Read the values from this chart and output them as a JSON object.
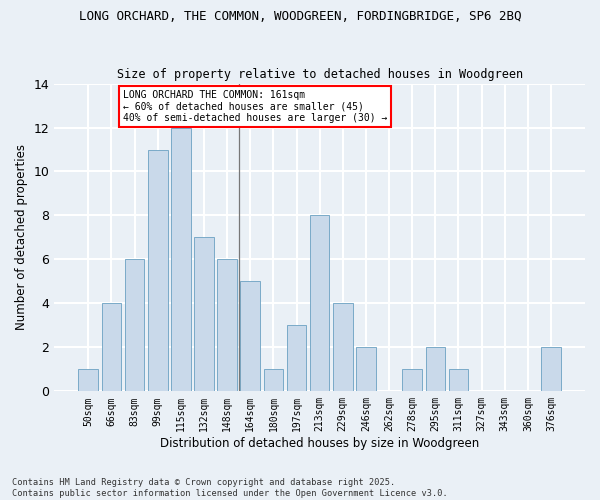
{
  "title1": "LONG ORCHARD, THE COMMON, WOODGREEN, FORDINGBRIDGE, SP6 2BQ",
  "title2": "Size of property relative to detached houses in Woodgreen",
  "xlabel": "Distribution of detached houses by size in Woodgreen",
  "ylabel": "Number of detached properties",
  "categories": [
    "50sqm",
    "66sqm",
    "83sqm",
    "99sqm",
    "115sqm",
    "132sqm",
    "148sqm",
    "164sqm",
    "180sqm",
    "197sqm",
    "213sqm",
    "229sqm",
    "246sqm",
    "262sqm",
    "278sqm",
    "295sqm",
    "311sqm",
    "327sqm",
    "343sqm",
    "360sqm",
    "376sqm"
  ],
  "values": [
    1,
    4,
    6,
    11,
    12,
    7,
    6,
    5,
    1,
    3,
    8,
    4,
    2,
    0,
    1,
    2,
    1,
    0,
    0,
    0,
    2
  ],
  "bar_color": "#c9d9ea",
  "bar_edge_color": "#7aaac8",
  "annotation_text": "LONG ORCHARD THE COMMON: 161sqm\n← 60% of detached houses are smaller (45)\n40% of semi-detached houses are larger (30) →",
  "annotation_box_color": "white",
  "annotation_box_edge_color": "red",
  "vline_x_index": 7,
  "ylim": [
    0,
    14
  ],
  "yticks": [
    0,
    2,
    4,
    6,
    8,
    10,
    12,
    14
  ],
  "footer1": "Contains HM Land Registry data © Crown copyright and database right 2025.",
  "footer2": "Contains public sector information licensed under the Open Government Licence v3.0.",
  "bg_color": "#eaf0f6",
  "grid_color": "white"
}
